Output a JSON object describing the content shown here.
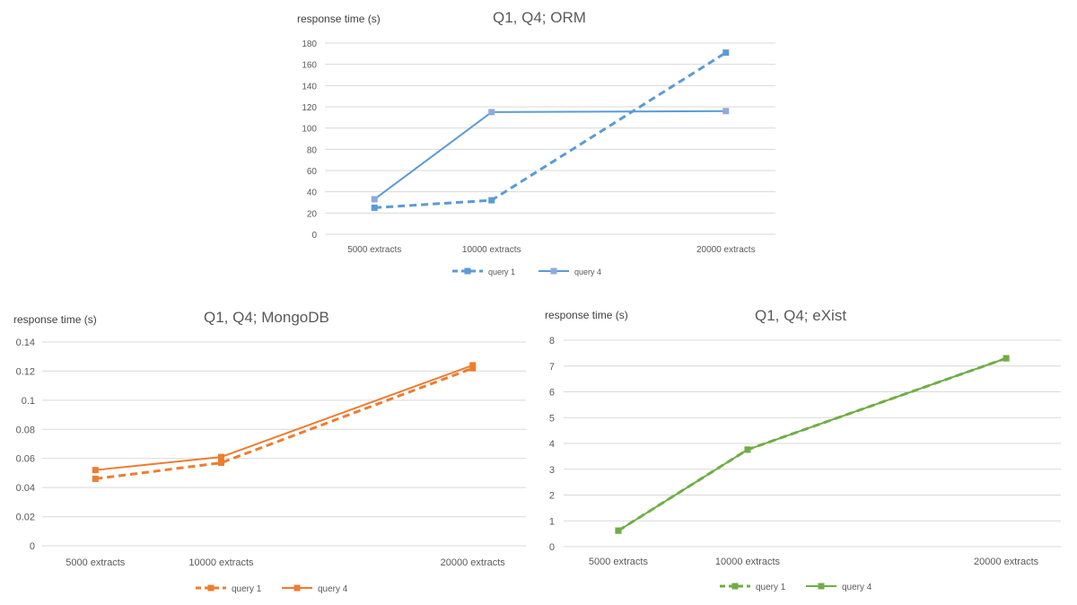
{
  "chart_data": [
    {
      "type": "line",
      "title": "Q1, Q4;  ORM",
      "ylabel": "response time (s)",
      "xlabel": "",
      "categories": [
        "5000 extracts",
        "10000 extracts",
        "20000 extracts"
      ],
      "x": [
        5000,
        10000,
        20000
      ],
      "ylim": [
        0,
        180
      ],
      "yticks": [
        0,
        20,
        40,
        60,
        80,
        100,
        120,
        140,
        160,
        180
      ],
      "ytick_labels": [
        "0",
        "20",
        "40",
        "60",
        "80",
        "100",
        "120",
        "140",
        "160",
        "180"
      ],
      "grid": true,
      "legend_position": "bottom",
      "series": [
        {
          "name": "query 1",
          "values": [
            25,
            32,
            171
          ],
          "color": "#5b9bd5",
          "dash": "dashed"
        },
        {
          "name": "query 4",
          "values": [
            33,
            115,
            116
          ],
          "color": "#8faadc",
          "stroke_color": "#5b9bd5",
          "dash": "solid"
        }
      ]
    },
    {
      "type": "line",
      "title": "Q1, Q4;  MongoDB",
      "ylabel": "response time (s)",
      "xlabel": "",
      "categories": [
        "5000 extracts",
        "10000 extracts",
        "20000 extracts"
      ],
      "x": [
        5000,
        10000,
        20000
      ],
      "ylim": [
        0,
        0.14
      ],
      "yticks": [
        0,
        0.02,
        0.04,
        0.06,
        0.08,
        0.1,
        0.12,
        0.14
      ],
      "ytick_labels": [
        "0",
        "0.02",
        "0.04",
        "0.06",
        "0.08",
        "0.1",
        "0.12",
        "0.14"
      ],
      "grid": true,
      "legend_position": "bottom",
      "series": [
        {
          "name": "query 1",
          "values": [
            0.046,
            0.057,
            0.122
          ],
          "color": "#ed7d31",
          "dash": "dashed"
        },
        {
          "name": "query 4",
          "values": [
            0.052,
            0.061,
            0.124
          ],
          "color": "#ed7d31",
          "dash": "solid"
        }
      ]
    },
    {
      "type": "line",
      "title": "Q1, Q4;  eXist",
      "ylabel": "response time (s)",
      "xlabel": "",
      "categories": [
        "5000 extracts",
        "10000 extracts",
        "20000 extracts"
      ],
      "x": [
        5000,
        10000,
        20000
      ],
      "ylim": [
        0,
        8
      ],
      "yticks": [
        0,
        1,
        2,
        3,
        4,
        5,
        6,
        7,
        8
      ],
      "ytick_labels": [
        "0",
        "1",
        "2",
        "3",
        "4",
        "5",
        "6",
        "7",
        "8"
      ],
      "grid": true,
      "legend_position": "bottom",
      "series": [
        {
          "name": "query 1",
          "values": [
            0.62,
            3.76,
            7.3
          ],
          "color": "#70ad47",
          "dash": "dashed"
        },
        {
          "name": "query 4",
          "values": [
            0.62,
            3.76,
            7.3
          ],
          "color": "#70ad47",
          "dash": "solid"
        }
      ]
    }
  ]
}
